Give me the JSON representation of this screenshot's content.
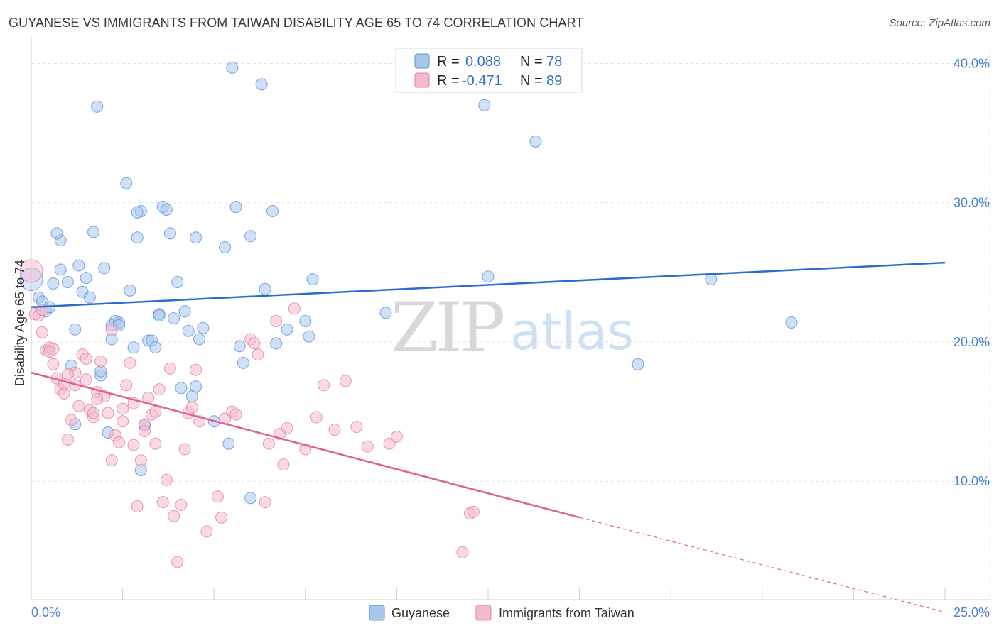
{
  "title": "GUYANESE VS IMMIGRANTS FROM TAIWAN DISABILITY AGE 65 TO 74 CORRELATION CHART",
  "source": "Source: ZipAtlas.com",
  "watermark": {
    "zip": "ZIP",
    "atlas": "atlas"
  },
  "colors": {
    "guyanese_fill": "#a9c7ee",
    "guyanese_stroke": "#5b90d6",
    "guyanese_line": "#2a6dcc",
    "taiwan_fill": "#f5b9ce",
    "taiwan_stroke": "#e07fa2",
    "taiwan_line": "#e0608f",
    "tick_text": "#4a7fd0"
  },
  "legend_box": [
    {
      "key": "R =",
      "r": "0.088",
      "nkey": "N =",
      "n": "78"
    },
    {
      "key": "R =",
      "r": "-0.471",
      "nkey": "N =",
      "n": "89"
    }
  ],
  "chart_data": {
    "type": "scatter",
    "title": "GUYANESE VS IMMIGRANTS FROM TAIWAN DISABILITY AGE 65 TO 74 CORRELATION CHART",
    "xlabel": "",
    "ylabel": "Disability Age 65 to 74",
    "xlim": [
      0,
      25
    ],
    "ylim": [
      1.5,
      41.5
    ],
    "x_tick_labels": [
      "0.0%",
      "25.0%"
    ],
    "y_ticks": [
      10,
      20,
      30,
      40
    ],
    "y_tick_labels": [
      "10.0%",
      "20.0%",
      "30.0%",
      "40.0%"
    ],
    "grid": true,
    "legend_position": "bottom-center",
    "series": [
      {
        "name": "Guyanese",
        "R": 0.088,
        "N": 78,
        "trend": {
          "x": [
            0,
            25
          ],
          "y": [
            22.5,
            25.7
          ]
        },
        "points": [
          [
            0.0,
            24.5
          ],
          [
            0.2,
            23.2
          ],
          [
            0.3,
            22.9
          ],
          [
            0.4,
            22.2
          ],
          [
            0.5,
            22.5
          ],
          [
            0.6,
            24.2
          ],
          [
            0.8,
            25.2
          ],
          [
            1.0,
            24.3
          ],
          [
            0.8,
            27.3
          ],
          [
            0.7,
            27.8
          ],
          [
            1.2,
            20.9
          ],
          [
            1.1,
            18.3
          ],
          [
            1.3,
            25.5
          ],
          [
            1.4,
            23.6
          ],
          [
            1.5,
            24.6
          ],
          [
            1.6,
            23.2
          ],
          [
            1.7,
            27.9
          ],
          [
            1.8,
            36.9
          ],
          [
            1.9,
            17.6
          ],
          [
            2.0,
            25.3
          ],
          [
            2.1,
            13.5
          ],
          [
            2.2,
            21.2
          ],
          [
            2.2,
            20.2
          ],
          [
            2.3,
            21.5
          ],
          [
            2.4,
            21.4
          ],
          [
            2.6,
            31.4
          ],
          [
            2.7,
            23.7
          ],
          [
            2.8,
            19.6
          ],
          [
            2.9,
            27.5
          ],
          [
            3.0,
            29.4
          ],
          [
            3.1,
            14.0
          ],
          [
            3.2,
            20.1
          ],
          [
            3.3,
            20.1
          ],
          [
            3.4,
            19.6
          ],
          [
            3.5,
            22.0
          ],
          [
            3.5,
            21.9
          ],
          [
            3.6,
            29.7
          ],
          [
            3.7,
            29.5
          ],
          [
            3.8,
            27.8
          ],
          [
            3.9,
            21.7
          ],
          [
            4.0,
            24.3
          ],
          [
            4.1,
            16.7
          ],
          [
            4.2,
            22.2
          ],
          [
            4.3,
            20.8
          ],
          [
            4.4,
            16.1
          ],
          [
            4.5,
            27.5
          ],
          [
            4.5,
            16.8
          ],
          [
            4.6,
            20.2
          ],
          [
            4.7,
            21.0
          ],
          [
            5.0,
            14.3
          ],
          [
            5.3,
            26.8
          ],
          [
            5.4,
            12.7
          ],
          [
            5.6,
            29.7
          ],
          [
            5.7,
            19.7
          ],
          [
            5.8,
            18.5
          ],
          [
            6.0,
            27.6
          ],
          [
            6.3,
            38.5
          ],
          [
            6.4,
            23.8
          ],
          [
            6.6,
            29.4
          ],
          [
            6.7,
            19.9
          ],
          [
            7.0,
            20.9
          ],
          [
            7.5,
            21.5
          ],
          [
            7.6,
            20.4
          ],
          [
            7.7,
            24.5
          ],
          [
            9.7,
            22.1
          ],
          [
            12.4,
            37.0
          ],
          [
            12.5,
            24.7
          ],
          [
            13.8,
            34.4
          ],
          [
            16.6,
            18.4
          ],
          [
            18.6,
            24.5
          ],
          [
            20.8,
            21.4
          ],
          [
            2.4,
            21.2
          ],
          [
            3.0,
            10.8
          ],
          [
            6.0,
            8.8
          ],
          [
            1.2,
            14.1
          ],
          [
            5.5,
            39.7
          ],
          [
            2.9,
            29.3
          ],
          [
            1.9,
            17.9
          ]
        ]
      },
      {
        "name": "Immigrants from Taiwan",
        "R": -0.471,
        "N": 89,
        "trend": {
          "x": [
            0,
            15
          ],
          "y": [
            17.8,
            7.4
          ]
        },
        "trend_dashed": {
          "x": [
            15,
            25
          ],
          "y": [
            7.4,
            0.6
          ]
        },
        "points": [
          [
            0.0,
            25.1
          ],
          [
            0.1,
            22.0
          ],
          [
            0.2,
            21.9
          ],
          [
            0.3,
            22.3
          ],
          [
            0.4,
            19.4
          ],
          [
            0.5,
            19.6
          ],
          [
            0.6,
            19.5
          ],
          [
            0.6,
            18.4
          ],
          [
            0.7,
            17.4
          ],
          [
            0.8,
            16.6
          ],
          [
            0.9,
            16.3
          ],
          [
            1.0,
            13.0
          ],
          [
            1.1,
            14.4
          ],
          [
            1.2,
            17.8
          ],
          [
            1.3,
            15.4
          ],
          [
            1.4,
            19.1
          ],
          [
            1.5,
            17.3
          ],
          [
            1.6,
            15.1
          ],
          [
            1.7,
            14.6
          ],
          [
            1.8,
            16.4
          ],
          [
            1.9,
            18.6
          ],
          [
            2.0,
            16.1
          ],
          [
            2.1,
            14.9
          ],
          [
            2.2,
            11.5
          ],
          [
            2.3,
            13.3
          ],
          [
            2.4,
            12.8
          ],
          [
            2.5,
            14.3
          ],
          [
            2.6,
            16.9
          ],
          [
            2.7,
            18.5
          ],
          [
            2.8,
            12.6
          ],
          [
            2.9,
            8.2
          ],
          [
            3.0,
            11.5
          ],
          [
            3.1,
            14.1
          ],
          [
            3.2,
            16.0
          ],
          [
            3.3,
            14.8
          ],
          [
            3.4,
            12.7
          ],
          [
            3.5,
            16.6
          ],
          [
            3.6,
            8.5
          ],
          [
            3.7,
            10.1
          ],
          [
            3.8,
            18.1
          ],
          [
            3.9,
            7.5
          ],
          [
            4.0,
            4.2
          ],
          [
            4.1,
            8.3
          ],
          [
            4.3,
            14.9
          ],
          [
            4.4,
            15.3
          ],
          [
            4.5,
            18.0
          ],
          [
            4.6,
            14.3
          ],
          [
            4.8,
            6.4
          ],
          [
            5.1,
            8.9
          ],
          [
            5.2,
            7.4
          ],
          [
            5.3,
            14.5
          ],
          [
            5.5,
            15.0
          ],
          [
            6.0,
            20.2
          ],
          [
            6.1,
            19.9
          ],
          [
            6.2,
            19.1
          ],
          [
            6.4,
            8.5
          ],
          [
            6.5,
            12.7
          ],
          [
            6.7,
            21.5
          ],
          [
            6.9,
            11.2
          ],
          [
            7.0,
            13.8
          ],
          [
            7.2,
            22.4
          ],
          [
            7.5,
            12.3
          ],
          [
            8.0,
            16.9
          ],
          [
            8.3,
            13.7
          ],
          [
            8.6,
            17.2
          ],
          [
            8.9,
            13.9
          ],
          [
            9.2,
            12.5
          ],
          [
            9.8,
            12.7
          ],
          [
            10.0,
            13.2
          ],
          [
            11.8,
            4.9
          ],
          [
            12.0,
            7.7
          ],
          [
            12.1,
            7.8
          ],
          [
            0.9,
            17.0
          ],
          [
            1.5,
            18.8
          ],
          [
            1.8,
            15.9
          ],
          [
            2.5,
            15.2
          ],
          [
            3.1,
            13.6
          ],
          [
            0.3,
            20.7
          ],
          [
            1.0,
            17.7
          ],
          [
            1.2,
            16.9
          ],
          [
            2.2,
            20.9
          ],
          [
            2.8,
            15.6
          ],
          [
            3.4,
            15.0
          ],
          [
            4.2,
            12.3
          ],
          [
            5.6,
            14.8
          ],
          [
            6.8,
            13.4
          ],
          [
            7.8,
            14.6
          ],
          [
            0.5,
            19.3
          ],
          [
            1.7,
            14.9
          ]
        ]
      }
    ]
  },
  "bottom_legend": [
    {
      "label": "Guyanese"
    },
    {
      "label": "Immigrants from Taiwan"
    }
  ]
}
